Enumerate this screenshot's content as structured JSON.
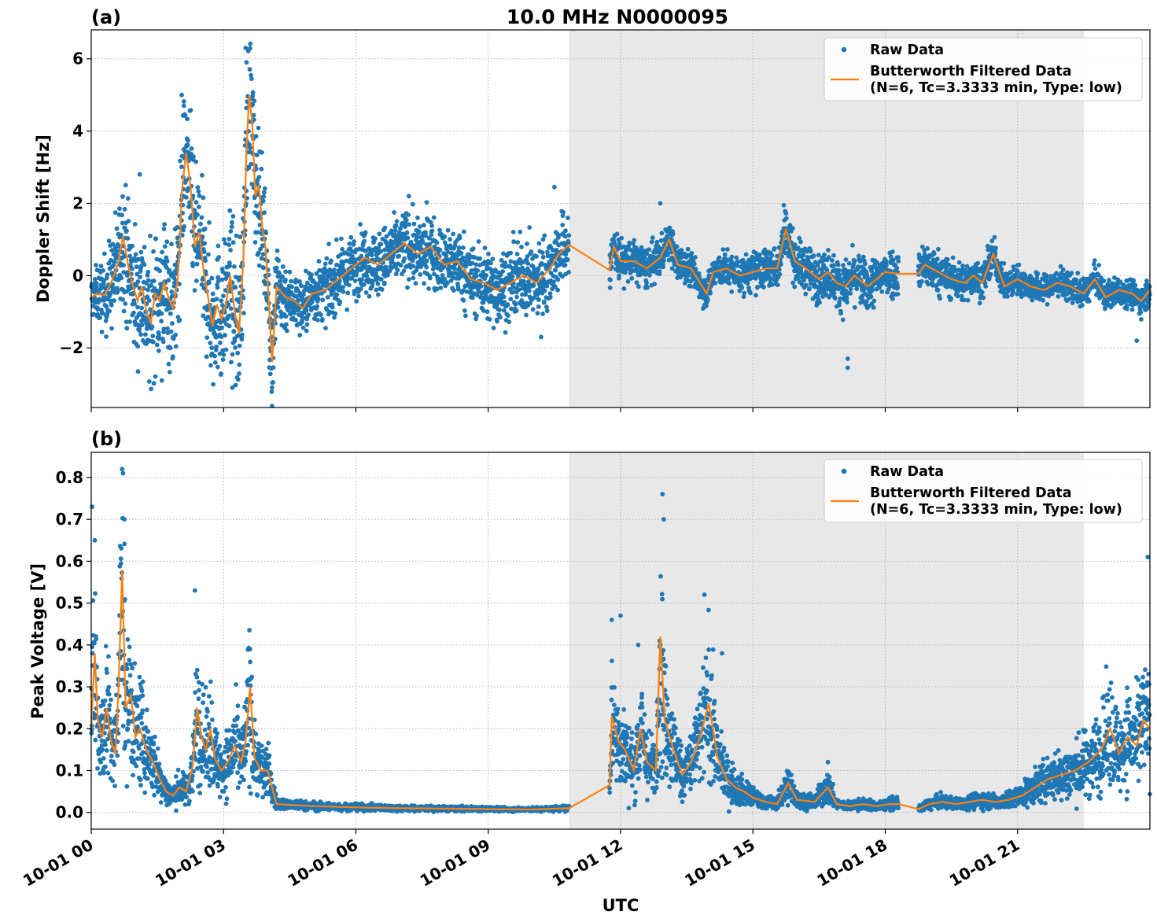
{
  "chart_data": {
    "title": "10.0 MHz N0000095",
    "xlabel": "UTC",
    "x_axis": {
      "type": "time",
      "range_hours": [
        0,
        24
      ],
      "ticks_hours": [
        0,
        3,
        6,
        9,
        12,
        15,
        18,
        21
      ],
      "tick_labels": [
        "10-01 00",
        "10-01 03",
        "10-01 06",
        "10-01 09",
        "10-01 12",
        "10-01 15",
        "10-01 18",
        "10-01 21"
      ],
      "tick_label_rotation": "30 degrees"
    },
    "shaded_region_hours": [
      10.83,
      22.5
    ],
    "shaded_color": "#e8e8e8",
    "grid": true,
    "legend_placement": "upper right",
    "series_styles": {
      "raw": {
        "name": "Raw Data",
        "color": "#1f77b4",
        "marker": "dot"
      },
      "filtered": {
        "name": "Butterworth Filtered Data",
        "name_line2": "(N=6, Tc=3.3333 min, Type: low)",
        "color": "#ff7f0e",
        "marker": "line"
      }
    },
    "panels": [
      {
        "type": "scatter",
        "label": "(a)",
        "ylabel": "Doppler Shift [Hz]",
        "ylim": [
          -3.65,
          6.8
        ],
        "yticks": [
          -2,
          0,
          2,
          4,
          6
        ],
        "ytick_labels": [
          "−2",
          "0",
          "2",
          "4",
          "6"
        ],
        "legend": {
          "raw": "Raw Data",
          "filtered_line1": "Butterworth Filtered Data",
          "filtered_line2": "(N=6, Tc=3.3333 min, Type: low)"
        },
        "data_gaps_hours": [
          [
            10.83,
            11.75
          ],
          [
            18.3,
            18.75
          ]
        ],
        "raw_spread_envelope": [
          {
            "x": 0,
            "spread": 0.5
          },
          {
            "x": 0.8,
            "spread": 1.6
          },
          {
            "x": 1.3,
            "spread": 1.6
          },
          {
            "x": 2.0,
            "spread": 1.7
          },
          {
            "x": 3.0,
            "spread": 1.6
          },
          {
            "x": 3.5,
            "spread": 1.8
          },
          {
            "x": 4.1,
            "spread": 1.4
          },
          {
            "x": 4.5,
            "spread": 0.7
          },
          {
            "x": 7.0,
            "spread": 0.8
          },
          {
            "x": 9.5,
            "spread": 0.9
          },
          {
            "x": 10.83,
            "spread": 0.9
          },
          {
            "x": 11.75,
            "spread": 0.55
          },
          {
            "x": 14.0,
            "spread": 0.4
          },
          {
            "x": 16.5,
            "spread": 0.6
          },
          {
            "x": 18.3,
            "spread": 0.6
          },
          {
            "x": 18.75,
            "spread": 0.55
          },
          {
            "x": 21.0,
            "spread": 0.35
          },
          {
            "x": 24.0,
            "spread": 0.35
          }
        ],
        "filtered_points": [
          [
            0.0,
            -0.6
          ],
          [
            0.15,
            -0.5
          ],
          [
            0.3,
            -0.55
          ],
          [
            0.45,
            -0.2
          ],
          [
            0.6,
            0.3
          ],
          [
            0.72,
            1.1
          ],
          [
            0.85,
            0.2
          ],
          [
            0.95,
            -0.3
          ],
          [
            1.05,
            -0.7
          ],
          [
            1.15,
            -0.3
          ],
          [
            1.25,
            -1.0
          ],
          [
            1.35,
            -1.3
          ],
          [
            1.45,
            -0.5
          ],
          [
            1.55,
            -0.7
          ],
          [
            1.65,
            -0.2
          ],
          [
            1.75,
            -0.6
          ],
          [
            1.85,
            -0.9
          ],
          [
            1.95,
            -0.2
          ],
          [
            2.0,
            0.6
          ],
          [
            2.05,
            2.3
          ],
          [
            2.15,
            3.4
          ],
          [
            2.25,
            2.5
          ],
          [
            2.35,
            0.8
          ],
          [
            2.45,
            1.2
          ],
          [
            2.55,
            0.1
          ],
          [
            2.65,
            -0.6
          ],
          [
            2.75,
            -1.4
          ],
          [
            2.85,
            -0.8
          ],
          [
            2.95,
            -1.2
          ],
          [
            3.05,
            -0.8
          ],
          [
            3.15,
            0.0
          ],
          [
            3.25,
            -1.0
          ],
          [
            3.35,
            -1.6
          ],
          [
            3.45,
            0.5
          ],
          [
            3.52,
            3.5
          ],
          [
            3.58,
            5.0
          ],
          [
            3.65,
            4.2
          ],
          [
            3.72,
            2.2
          ],
          [
            3.8,
            2.5
          ],
          [
            3.88,
            1.3
          ],
          [
            3.95,
            0.8
          ],
          [
            4.03,
            -0.8
          ],
          [
            4.1,
            -2.4
          ],
          [
            4.2,
            -0.3
          ],
          [
            4.4,
            -0.6
          ],
          [
            4.6,
            -0.7
          ],
          [
            4.8,
            -0.9
          ],
          [
            5.0,
            -0.5
          ],
          [
            5.3,
            -0.4
          ],
          [
            5.6,
            -0.1
          ],
          [
            5.9,
            0.2
          ],
          [
            6.2,
            0.5
          ],
          [
            6.5,
            0.3
          ],
          [
            6.8,
            0.6
          ],
          [
            7.1,
            0.9
          ],
          [
            7.4,
            0.6
          ],
          [
            7.7,
            0.8
          ],
          [
            8.0,
            0.3
          ],
          [
            8.3,
            0.4
          ],
          [
            8.6,
            -0.1
          ],
          [
            8.9,
            -0.2
          ],
          [
            9.2,
            -0.4
          ],
          [
            9.5,
            -0.2
          ],
          [
            9.8,
            0.0
          ],
          [
            10.1,
            -0.2
          ],
          [
            10.4,
            0.2
          ],
          [
            10.6,
            0.6
          ],
          [
            10.83,
            0.85
          ],
          [
            11.75,
            0.15
          ],
          [
            11.85,
            0.8
          ],
          [
            12.0,
            0.4
          ],
          [
            12.3,
            0.4
          ],
          [
            12.6,
            0.2
          ],
          [
            12.9,
            0.5
          ],
          [
            13.1,
            1.0
          ],
          [
            13.3,
            0.3
          ],
          [
            13.6,
            0.2
          ],
          [
            13.85,
            -0.3
          ],
          [
            13.95,
            -0.5
          ],
          [
            14.1,
            0.1
          ],
          [
            14.4,
            0.2
          ],
          [
            14.7,
            0.0
          ],
          [
            15.0,
            0.1
          ],
          [
            15.3,
            0.2
          ],
          [
            15.55,
            0.2
          ],
          [
            15.75,
            1.3
          ],
          [
            15.95,
            0.4
          ],
          [
            16.2,
            0.2
          ],
          [
            16.5,
            -0.1
          ],
          [
            16.7,
            0.1
          ],
          [
            16.9,
            -0.2
          ],
          [
            17.1,
            -0.3
          ],
          [
            17.3,
            0.0
          ],
          [
            17.6,
            -0.3
          ],
          [
            17.8,
            -0.1
          ],
          [
            18.0,
            0.1
          ],
          [
            18.3,
            0.05
          ],
          [
            18.75,
            0.05
          ],
          [
            18.9,
            0.3
          ],
          [
            19.2,
            0.1
          ],
          [
            19.5,
            -0.1
          ],
          [
            19.8,
            -0.2
          ],
          [
            20.0,
            0.0
          ],
          [
            20.2,
            -0.2
          ],
          [
            20.45,
            0.6
          ],
          [
            20.7,
            -0.3
          ],
          [
            21.0,
            -0.1
          ],
          [
            21.3,
            -0.3
          ],
          [
            21.6,
            -0.4
          ],
          [
            21.9,
            -0.2
          ],
          [
            22.2,
            -0.3
          ],
          [
            22.5,
            -0.5
          ],
          [
            22.75,
            -0.1
          ],
          [
            23.0,
            -0.6
          ],
          [
            23.3,
            -0.4
          ],
          [
            23.6,
            -0.5
          ],
          [
            23.8,
            -0.7
          ],
          [
            24.0,
            -0.4
          ]
        ],
        "raw_outliers": [
          [
            1.1,
            2.8
          ],
          [
            1.6,
            -2.9
          ],
          [
            2.05,
            5.0
          ],
          [
            2.1,
            4.7
          ],
          [
            3.5,
            6.3
          ],
          [
            3.52,
            5.9
          ],
          [
            4.1,
            -3.1
          ],
          [
            3.2,
            -3.1
          ],
          [
            7.2,
            2.2
          ],
          [
            10.5,
            2.45
          ],
          [
            10.2,
            -1.7
          ],
          [
            12.9,
            2.0
          ],
          [
            15.7,
            1.95
          ],
          [
            17.15,
            -2.55
          ],
          [
            17.15,
            -2.3
          ],
          [
            23.7,
            -1.8
          ]
        ]
      },
      {
        "type": "scatter",
        "label": "(b)",
        "ylabel": "Peak Voltage [V]",
        "ylim": [
          -0.04,
          0.86
        ],
        "yticks": [
          0.0,
          0.1,
          0.2,
          0.3,
          0.4,
          0.5,
          0.6,
          0.7,
          0.8
        ],
        "ytick_labels": [
          "0.0",
          "0.1",
          "0.2",
          "0.3",
          "0.4",
          "0.5",
          "0.6",
          "0.7",
          "0.8"
        ],
        "legend": {
          "raw": "Raw Data",
          "filtered_line1": "Butterworth Filtered Data",
          "filtered_line2": "(N=6, Tc=3.3333 min, Type: low)"
        },
        "data_gaps_hours": [
          [
            10.83,
            11.75
          ],
          [
            18.3,
            18.75
          ]
        ],
        "raw_spread_ratio": 0.55,
        "filtered_points": [
          [
            0.0,
            0.2
          ],
          [
            0.08,
            0.38
          ],
          [
            0.15,
            0.22
          ],
          [
            0.25,
            0.18
          ],
          [
            0.35,
            0.25
          ],
          [
            0.45,
            0.17
          ],
          [
            0.55,
            0.14
          ],
          [
            0.62,
            0.3
          ],
          [
            0.7,
            0.58
          ],
          [
            0.78,
            0.25
          ],
          [
            0.9,
            0.28
          ],
          [
            1.0,
            0.18
          ],
          [
            1.1,
            0.2
          ],
          [
            1.25,
            0.15
          ],
          [
            1.4,
            0.12
          ],
          [
            1.55,
            0.08
          ],
          [
            1.7,
            0.05
          ],
          [
            1.85,
            0.04
          ],
          [
            2.0,
            0.06
          ],
          [
            2.15,
            0.05
          ],
          [
            2.3,
            0.11
          ],
          [
            2.4,
            0.25
          ],
          [
            2.5,
            0.18
          ],
          [
            2.6,
            0.15
          ],
          [
            2.7,
            0.2
          ],
          [
            2.8,
            0.13
          ],
          [
            2.95,
            0.1
          ],
          [
            3.1,
            0.12
          ],
          [
            3.25,
            0.16
          ],
          [
            3.4,
            0.12
          ],
          [
            3.5,
            0.17
          ],
          [
            3.6,
            0.3
          ],
          [
            3.7,
            0.13
          ],
          [
            3.85,
            0.1
          ],
          [
            4.0,
            0.1
          ],
          [
            4.1,
            0.06
          ],
          [
            4.2,
            0.02
          ],
          [
            4.5,
            0.018
          ],
          [
            5.0,
            0.015
          ],
          [
            6.0,
            0.012
          ],
          [
            7.0,
            0.01
          ],
          [
            8.0,
            0.009
          ],
          [
            9.0,
            0.008
          ],
          [
            10.0,
            0.007
          ],
          [
            10.83,
            0.01
          ],
          [
            11.75,
            0.065
          ],
          [
            11.8,
            0.23
          ],
          [
            11.95,
            0.17
          ],
          [
            12.1,
            0.15
          ],
          [
            12.3,
            0.1
          ],
          [
            12.45,
            0.2
          ],
          [
            12.6,
            0.12
          ],
          [
            12.8,
            0.1
          ],
          [
            12.9,
            0.42
          ],
          [
            13.0,
            0.22
          ],
          [
            13.2,
            0.15
          ],
          [
            13.4,
            0.09
          ],
          [
            13.6,
            0.12
          ],
          [
            13.8,
            0.18
          ],
          [
            14.0,
            0.26
          ],
          [
            14.2,
            0.13
          ],
          [
            14.4,
            0.08
          ],
          [
            14.6,
            0.06
          ],
          [
            14.8,
            0.05
          ],
          [
            15.0,
            0.035
          ],
          [
            15.3,
            0.025
          ],
          [
            15.55,
            0.02
          ],
          [
            15.8,
            0.07
          ],
          [
            16.0,
            0.03
          ],
          [
            16.4,
            0.025
          ],
          [
            16.7,
            0.06
          ],
          [
            16.9,
            0.02
          ],
          [
            17.2,
            0.015
          ],
          [
            17.5,
            0.02
          ],
          [
            17.8,
            0.015
          ],
          [
            18.1,
            0.02
          ],
          [
            18.3,
            0.02
          ],
          [
            18.75,
            0.008
          ],
          [
            19.0,
            0.02
          ],
          [
            19.3,
            0.025
          ],
          [
            19.6,
            0.02
          ],
          [
            19.9,
            0.025
          ],
          [
            20.2,
            0.03
          ],
          [
            20.5,
            0.025
          ],
          [
            20.8,
            0.03
          ],
          [
            21.1,
            0.04
          ],
          [
            21.4,
            0.06
          ],
          [
            21.7,
            0.08
          ],
          [
            22.0,
            0.09
          ],
          [
            22.3,
            0.1
          ],
          [
            22.6,
            0.12
          ],
          [
            22.9,
            0.15
          ],
          [
            23.1,
            0.2
          ],
          [
            23.3,
            0.14
          ],
          [
            23.5,
            0.18
          ],
          [
            23.7,
            0.16
          ],
          [
            23.85,
            0.22
          ],
          [
            24.0,
            0.2
          ]
        ],
        "raw_outliers": [
          [
            0.02,
            0.73
          ],
          [
            0.08,
            0.65
          ],
          [
            0.7,
            0.82
          ],
          [
            0.72,
            0.81
          ],
          [
            0.75,
            0.7
          ],
          [
            2.35,
            0.53
          ],
          [
            3.6,
            0.39
          ],
          [
            11.8,
            0.46
          ],
          [
            12.0,
            0.47
          ],
          [
            12.4,
            0.4
          ],
          [
            12.95,
            0.76
          ],
          [
            12.98,
            0.7
          ],
          [
            13.9,
            0.52
          ],
          [
            14.3,
            0.38
          ],
          [
            16.7,
            0.12
          ],
          [
            23.95,
            0.61
          ]
        ]
      }
    ]
  }
}
